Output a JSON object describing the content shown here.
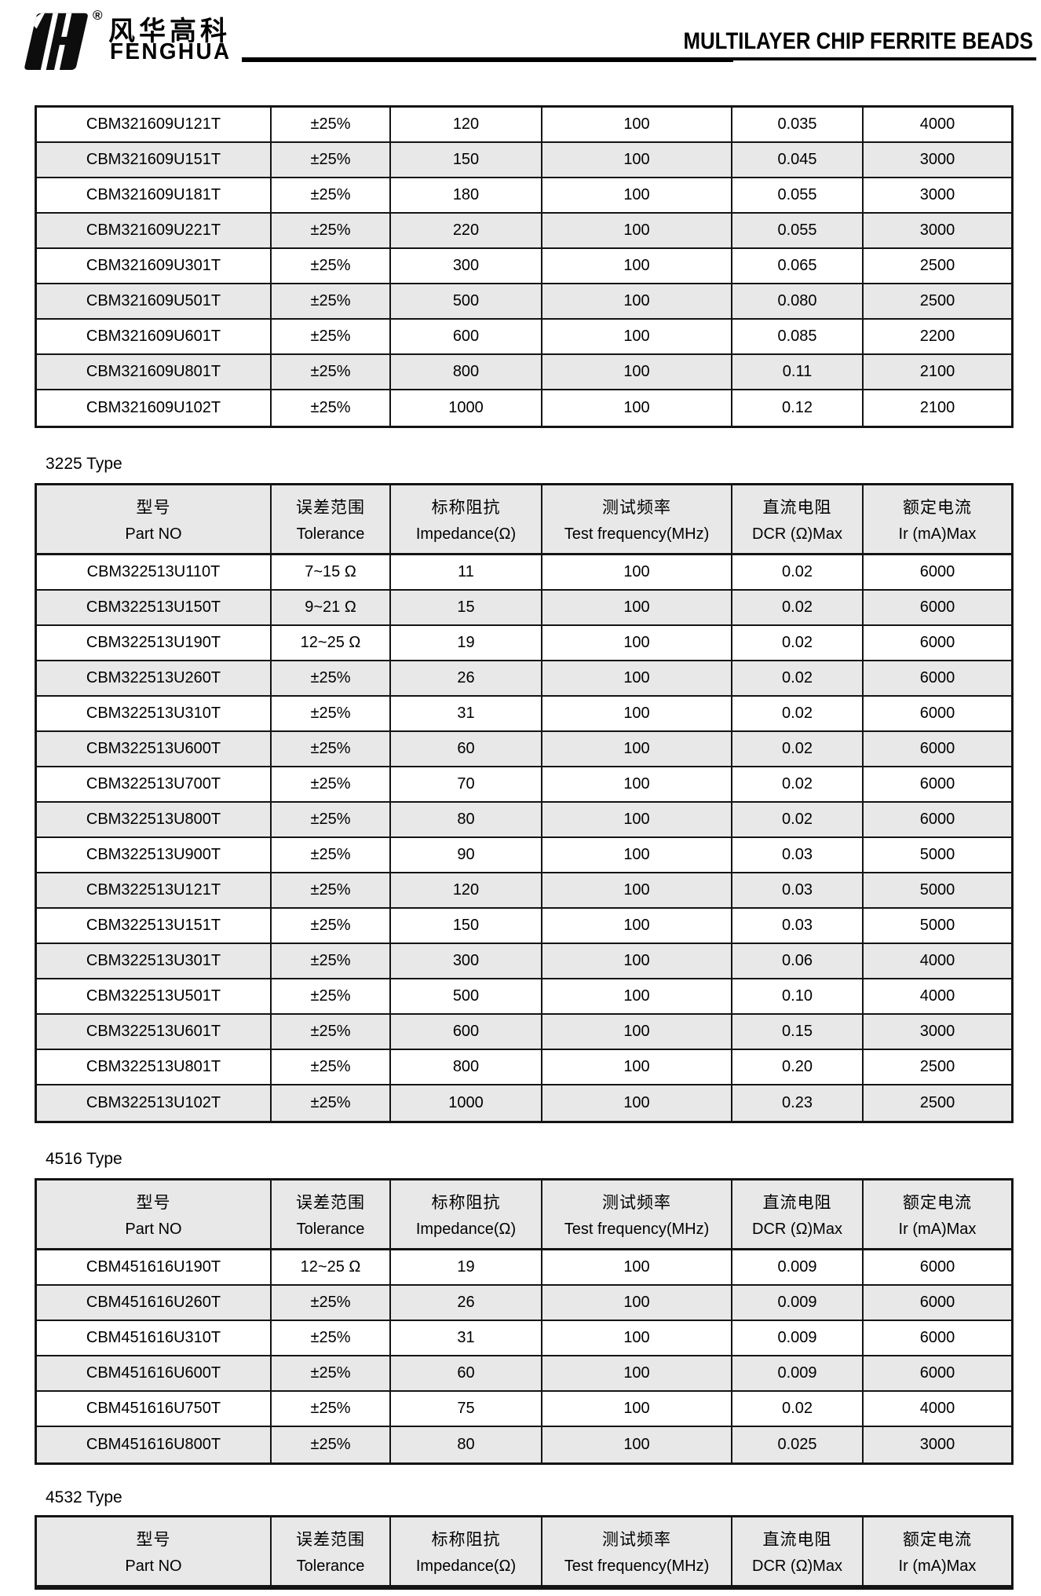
{
  "header": {
    "logo": {
      "registered": "®",
      "brand_cn": "风华高科",
      "brand_en": "FENGHUA"
    },
    "title": "MULTILAYER CHIP FERRITE BEADS"
  },
  "table_header": {
    "zh": [
      "型号",
      "误差范围",
      "标称阻抗",
      "测试频率",
      "直流电阻",
      "额定电流"
    ],
    "en": [
      "Part NO",
      "Tolerance",
      "Impedance(Ω)",
      "Test frequency(MHz)",
      "DCR (Ω)Max",
      "Ir (mA)Max"
    ]
  },
  "sections": [
    {
      "label": "",
      "rows": [
        [
          "CBM321609U121T",
          "±25%",
          "120",
          "100",
          "0.035",
          "4000"
        ],
        [
          "CBM321609U151T",
          "±25%",
          "150",
          "100",
          "0.045",
          "3000"
        ],
        [
          "CBM321609U181T",
          "±25%",
          "180",
          "100",
          "0.055",
          "3000"
        ],
        [
          "CBM321609U221T",
          "±25%",
          "220",
          "100",
          "0.055",
          "3000"
        ],
        [
          "CBM321609U301T",
          "±25%",
          "300",
          "100",
          "0.065",
          "2500"
        ],
        [
          "CBM321609U501T",
          "±25%",
          "500",
          "100",
          "0.080",
          "2500"
        ],
        [
          "CBM321609U601T",
          "±25%",
          "600",
          "100",
          "0.085",
          "2200"
        ],
        [
          "CBM321609U801T",
          "±25%",
          "800",
          "100",
          "0.11",
          "2100"
        ],
        [
          "CBM321609U102T",
          "±25%",
          "1000",
          "100",
          "0.12",
          "2100"
        ]
      ]
    },
    {
      "label": "3225 Type",
      "rows": [
        [
          "CBM322513U110T",
          "7~15 Ω",
          "11",
          "100",
          "0.02",
          "6000"
        ],
        [
          "CBM322513U150T",
          "9~21 Ω",
          "15",
          "100",
          "0.02",
          "6000"
        ],
        [
          "CBM322513U190T",
          "12~25 Ω",
          "19",
          "100",
          "0.02",
          "6000"
        ],
        [
          "CBM322513U260T",
          "±25%",
          "26",
          "100",
          "0.02",
          "6000"
        ],
        [
          "CBM322513U310T",
          "±25%",
          "31",
          "100",
          "0.02",
          "6000"
        ],
        [
          "CBM322513U600T",
          "±25%",
          "60",
          "100",
          "0.02",
          "6000"
        ],
        [
          "CBM322513U700T",
          "±25%",
          "70",
          "100",
          "0.02",
          "6000"
        ],
        [
          "CBM322513U800T",
          "±25%",
          "80",
          "100",
          "0.02",
          "6000"
        ],
        [
          "CBM322513U900T",
          "±25%",
          "90",
          "100",
          "0.03",
          "5000"
        ],
        [
          "CBM322513U121T",
          "±25%",
          "120",
          "100",
          "0.03",
          "5000"
        ],
        [
          "CBM322513U151T",
          "±25%",
          "150",
          "100",
          "0.03",
          "5000"
        ],
        [
          "CBM322513U301T",
          "±25%",
          "300",
          "100",
          "0.06",
          "4000"
        ],
        [
          "CBM322513U501T",
          "±25%",
          "500",
          "100",
          "0.10",
          "4000"
        ],
        [
          "CBM322513U601T",
          "±25%",
          "600",
          "100",
          "0.15",
          "3000"
        ],
        [
          "CBM322513U801T",
          "±25%",
          "800",
          "100",
          "0.20",
          "2500"
        ],
        [
          "CBM322513U102T",
          "±25%",
          "1000",
          "100",
          "0.23",
          "2500"
        ]
      ]
    },
    {
      "label": "4516 Type",
      "rows": [
        [
          "CBM451616U190T",
          "12~25 Ω",
          "19",
          "100",
          "0.009",
          "6000"
        ],
        [
          "CBM451616U260T",
          "±25%",
          "26",
          "100",
          "0.009",
          "6000"
        ],
        [
          "CBM451616U310T",
          "±25%",
          "31",
          "100",
          "0.009",
          "6000"
        ],
        [
          "CBM451616U600T",
          "±25%",
          "60",
          "100",
          "0.009",
          "6000"
        ],
        [
          "CBM451616U750T",
          "±25%",
          "75",
          "100",
          "0.02",
          "4000"
        ],
        [
          "CBM451616U800T",
          "±25%",
          "80",
          "100",
          "0.025",
          "3000"
        ]
      ]
    },
    {
      "label": "4532 Type",
      "rows": []
    }
  ]
}
